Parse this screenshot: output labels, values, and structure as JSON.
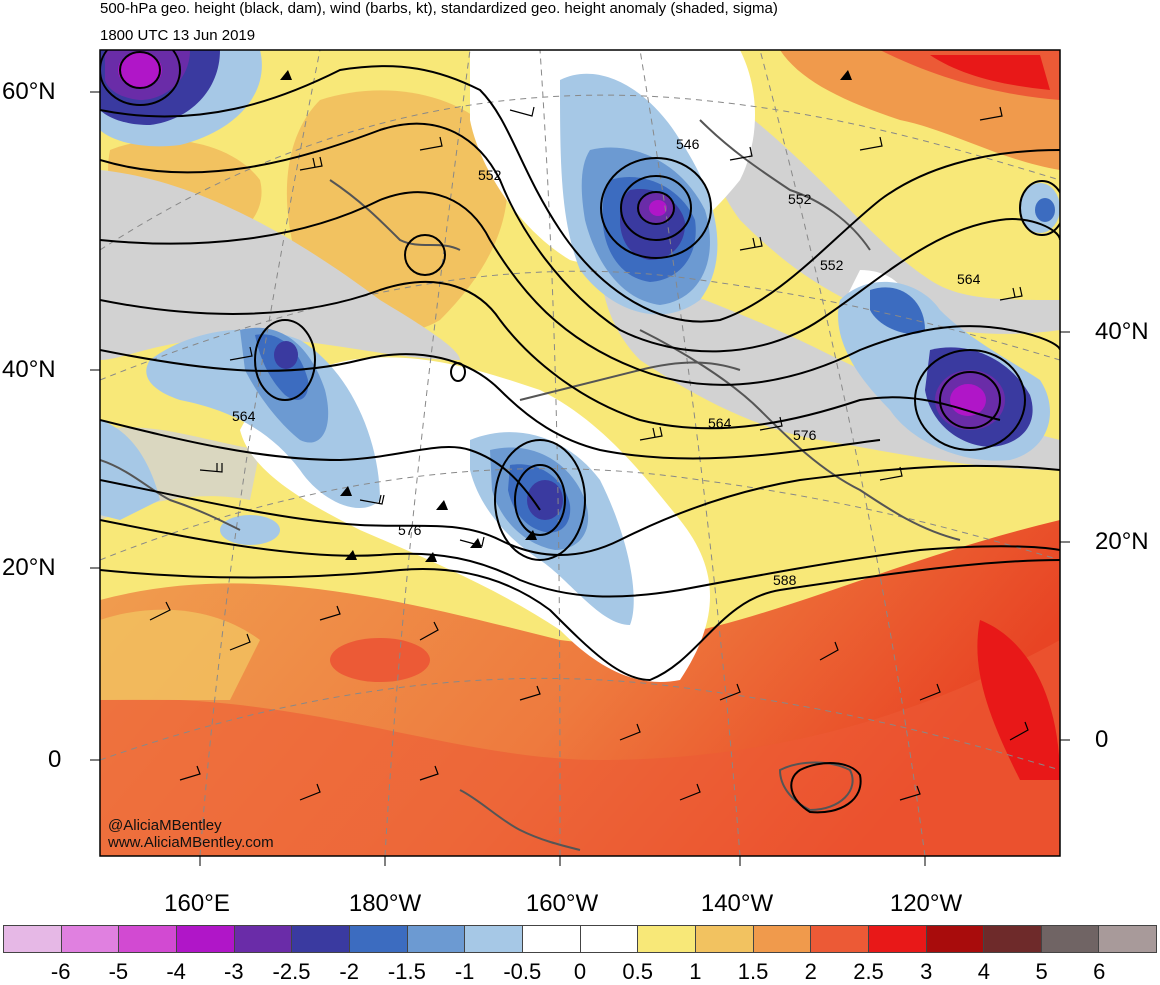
{
  "title": {
    "line1": "500-hPa geo. height (black, dam), wind (barbs, kt), standardized geo. height anomaly (shaded, sigma)",
    "line2": "1800 UTC 13 Jun 2019"
  },
  "lat_labels_left": [
    "60°N",
    "40°N",
    "20°N",
    "0"
  ],
  "lat_labels_right": [
    "40°N",
    "20°N",
    "0"
  ],
  "lon_labels": [
    "160°E",
    "180°W",
    "160°W",
    "140°W",
    "120°W"
  ],
  "contour_labels": [
    "552",
    "546",
    "552",
    "552",
    "564",
    "564",
    "564",
    "576",
    "576",
    "588"
  ],
  "credits": [
    "@AliciaMBentley",
    "www.AliciaMBentley.com"
  ],
  "colorbar": {
    "labels": [
      "-6",
      "-5",
      "-4",
      "-3",
      "-2.5",
      "-2",
      "-1.5",
      "-1",
      "-0.5",
      "0",
      "0.5",
      "1",
      "1.5",
      "2",
      "2.5",
      "3",
      "4",
      "5",
      "6"
    ],
    "colors": [
      "#e6b8e6",
      "#e080e0",
      "#d24ad2",
      "#b016c8",
      "#6a2ca8",
      "#3a3aa0",
      "#3c6cc0",
      "#6c9ad2",
      "#a6c8e6",
      "#ffffff",
      "#ffffff",
      "#f8e878",
      "#f2c260",
      "#f09a4c",
      "#ec5a36",
      "#e81818",
      "#a80c0c",
      "#6e2a2a",
      "#706464",
      "#a89a9a"
    ]
  }
}
